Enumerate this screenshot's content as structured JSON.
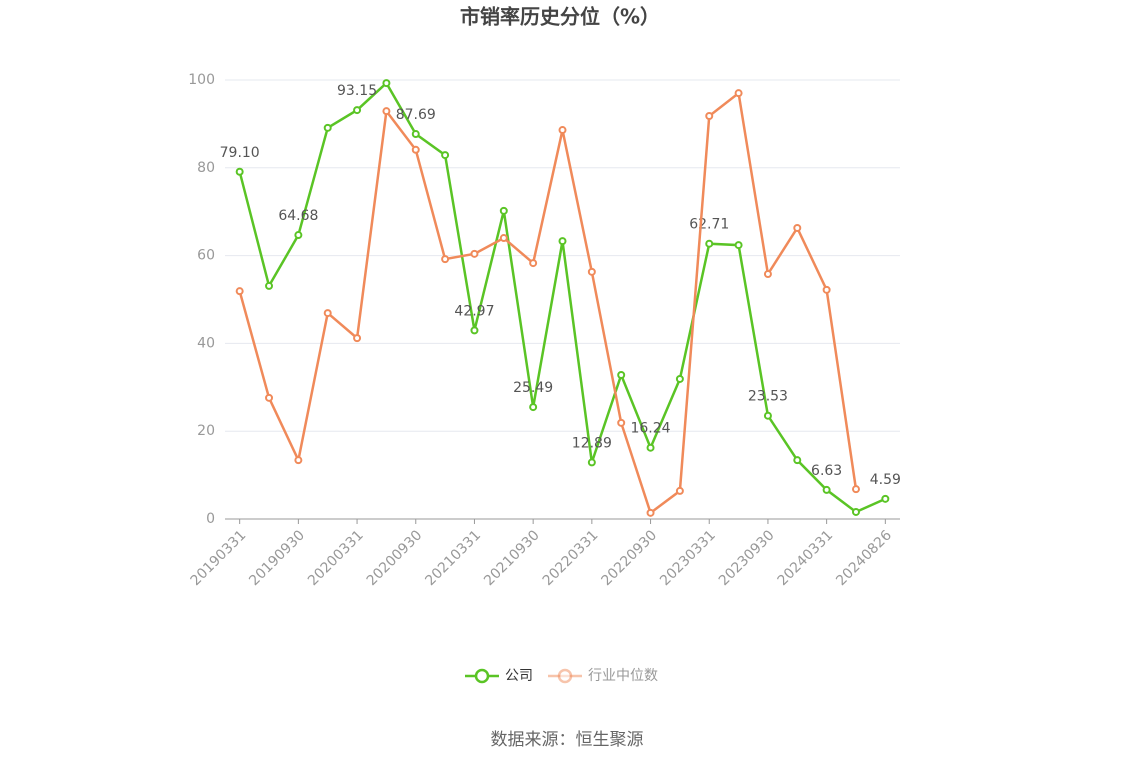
{
  "chart_data": {
    "type": "line",
    "title": "市销率历史分位（%）",
    "categories": [
      "20190331",
      null,
      "20190930",
      null,
      "20200331",
      null,
      "20200930",
      null,
      "20210331",
      null,
      "20210930",
      null,
      "20220331",
      null,
      "20220930",
      null,
      "20230331",
      null,
      "20230930",
      null,
      "20240331",
      null,
      "20240826"
    ],
    "series": [
      {
        "name": "公司",
        "color": "#5ac425",
        "values": [
          79.1,
          53.1,
          64.68,
          89.1,
          93.15,
          99.3,
          87.69,
          82.9,
          42.97,
          70.2,
          25.49,
          63.3,
          12.89,
          32.8,
          16.24,
          31.9,
          62.71,
          62.4,
          23.53,
          13.4,
          6.63,
          1.6,
          4.59
        ],
        "value_labels": [
          "79.10",
          null,
          "64.68",
          null,
          "93.15",
          null,
          "87.69",
          null,
          "42.97",
          null,
          "25.49",
          null,
          "12.89",
          null,
          "16.24",
          null,
          "62.71",
          null,
          "23.53",
          null,
          "6.63",
          null,
          "4.59"
        ]
      },
      {
        "name": "行业中位数",
        "color": "#f08a5a",
        "values": [
          51.9,
          27.6,
          13.4,
          46.9,
          41.2,
          92.9,
          84.1,
          59.2,
          60.4,
          64.0,
          58.3,
          88.6,
          56.3,
          21.9,
          1.4,
          6.4,
          91.8,
          97.0,
          55.8,
          66.3,
          52.2,
          6.8,
          null
        ]
      }
    ],
    "ylim": [
      0,
      100
    ],
    "yticks": [
      0,
      20,
      40,
      60,
      80,
      100
    ],
    "grid": true,
    "legend": "bottom",
    "source": "数据来源：恒生聚源"
  }
}
